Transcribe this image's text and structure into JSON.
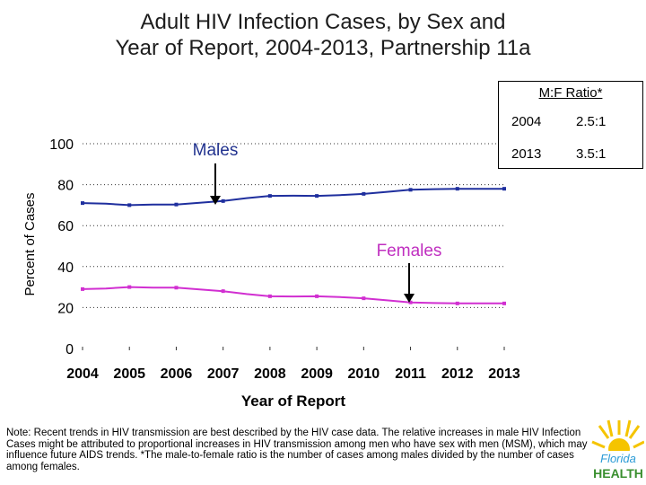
{
  "title_line1": "Adult HIV Infection Cases, by Sex and",
  "title_line2": "Year of Report, 2004-2013, Partnership 11a",
  "ratio_box": {
    "heading": "M:F Ratio*",
    "rows": [
      {
        "year": "2004",
        "ratio": "2.5:1"
      },
      {
        "year": "2013",
        "ratio": "3.5:1"
      }
    ]
  },
  "note": "Note:  Recent trends in HIV transmission are best described by the HIV case data.  The relative increases in male HIV Infection Cases might be attributed to proportional increases in HIV transmission among men who have sex with men (MSM), which may influence future AIDS trends. *The male-to-female ratio is the number of cases among males divided by the number of cases among females.",
  "logo": {
    "line1": "Florida",
    "line2": "HEALTH"
  },
  "colors": {
    "males": "#1f2f9e",
    "females": "#d12fd1",
    "annotation_males": "#22338f",
    "annotation_females": "#c02fc0"
  },
  "chart_data": {
    "type": "line",
    "categories": [
      "2004",
      "2005",
      "2006",
      "2007",
      "2008",
      "2009",
      "2010",
      "2011",
      "2012",
      "2013"
    ],
    "x": [
      2004,
      2004.5,
      2005,
      2005.5,
      2006,
      2006.5,
      2007,
      2007.5,
      2008,
      2008.5,
      2009,
      2009.5,
      2010,
      2010.5,
      2011,
      2011.5,
      2012,
      2012.5,
      2013
    ],
    "series": [
      {
        "name": "Males",
        "values": [
          71,
          70.7,
          70,
          70.3,
          70.3,
          71.2,
          72,
          73.4,
          74.5,
          74.6,
          74.5,
          74.9,
          75.5,
          76.5,
          77.5,
          77.8,
          78,
          78,
          78
        ]
      },
      {
        "name": "Females",
        "values": [
          29,
          29.3,
          30,
          29.7,
          29.7,
          28.8,
          28,
          26.6,
          25.5,
          25.4,
          25.5,
          25.1,
          24.5,
          23.5,
          22.5,
          22.2,
          22,
          22,
          22
        ]
      }
    ],
    "yticks": [
      "0",
      "20",
      "40",
      "60",
      "80",
      "100"
    ],
    "ylim": [
      0,
      100
    ],
    "xlabel": "Year of Report",
    "ylabel": "Percent of Cases",
    "annotations": [
      "Males",
      "Females"
    ],
    "grid": "dotted horizontal"
  }
}
